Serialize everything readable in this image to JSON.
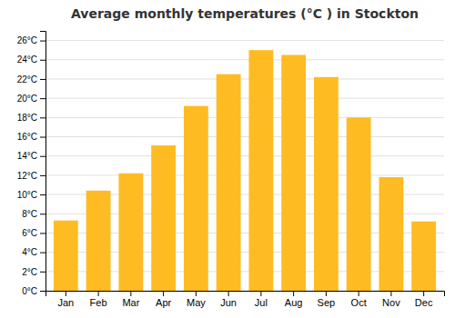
{
  "chart_data": {
    "type": "bar",
    "title": "Average monthly temperatures (°C ) in Stockton",
    "categories": [
      "Jan",
      "Feb",
      "Mar",
      "Apr",
      "May",
      "Jun",
      "Jul",
      "Aug",
      "Sep",
      "Oct",
      "Nov",
      "Dec"
    ],
    "values": [
      7.3,
      10.4,
      12.2,
      15.1,
      19.2,
      22.5,
      25.0,
      24.5,
      22.2,
      18.0,
      11.8,
      7.2
    ],
    "color": "#FFBB22",
    "ylim": [
      0,
      27
    ],
    "yticks": [
      {
        "value": 0,
        "label": "0°C"
      },
      {
        "value": 2,
        "label": "2°C"
      },
      {
        "value": 4,
        "label": "4°C"
      },
      {
        "value": 6,
        "label": "6°C"
      },
      {
        "value": 8,
        "label": "8°C"
      },
      {
        "value": 10,
        "label": "10°C"
      },
      {
        "value": 12,
        "label": "12°C"
      },
      {
        "value": 14,
        "label": "14°C"
      },
      {
        "value": 16,
        "label": "16°C"
      },
      {
        "value": 18,
        "label": "18°C"
      },
      {
        "value": 20,
        "label": "20°C"
      },
      {
        "value": 22,
        "label": "22°C"
      },
      {
        "value": 24,
        "label": "24°C"
      },
      {
        "value": 26,
        "label": "26°C"
      }
    ],
    "grid": true
  }
}
